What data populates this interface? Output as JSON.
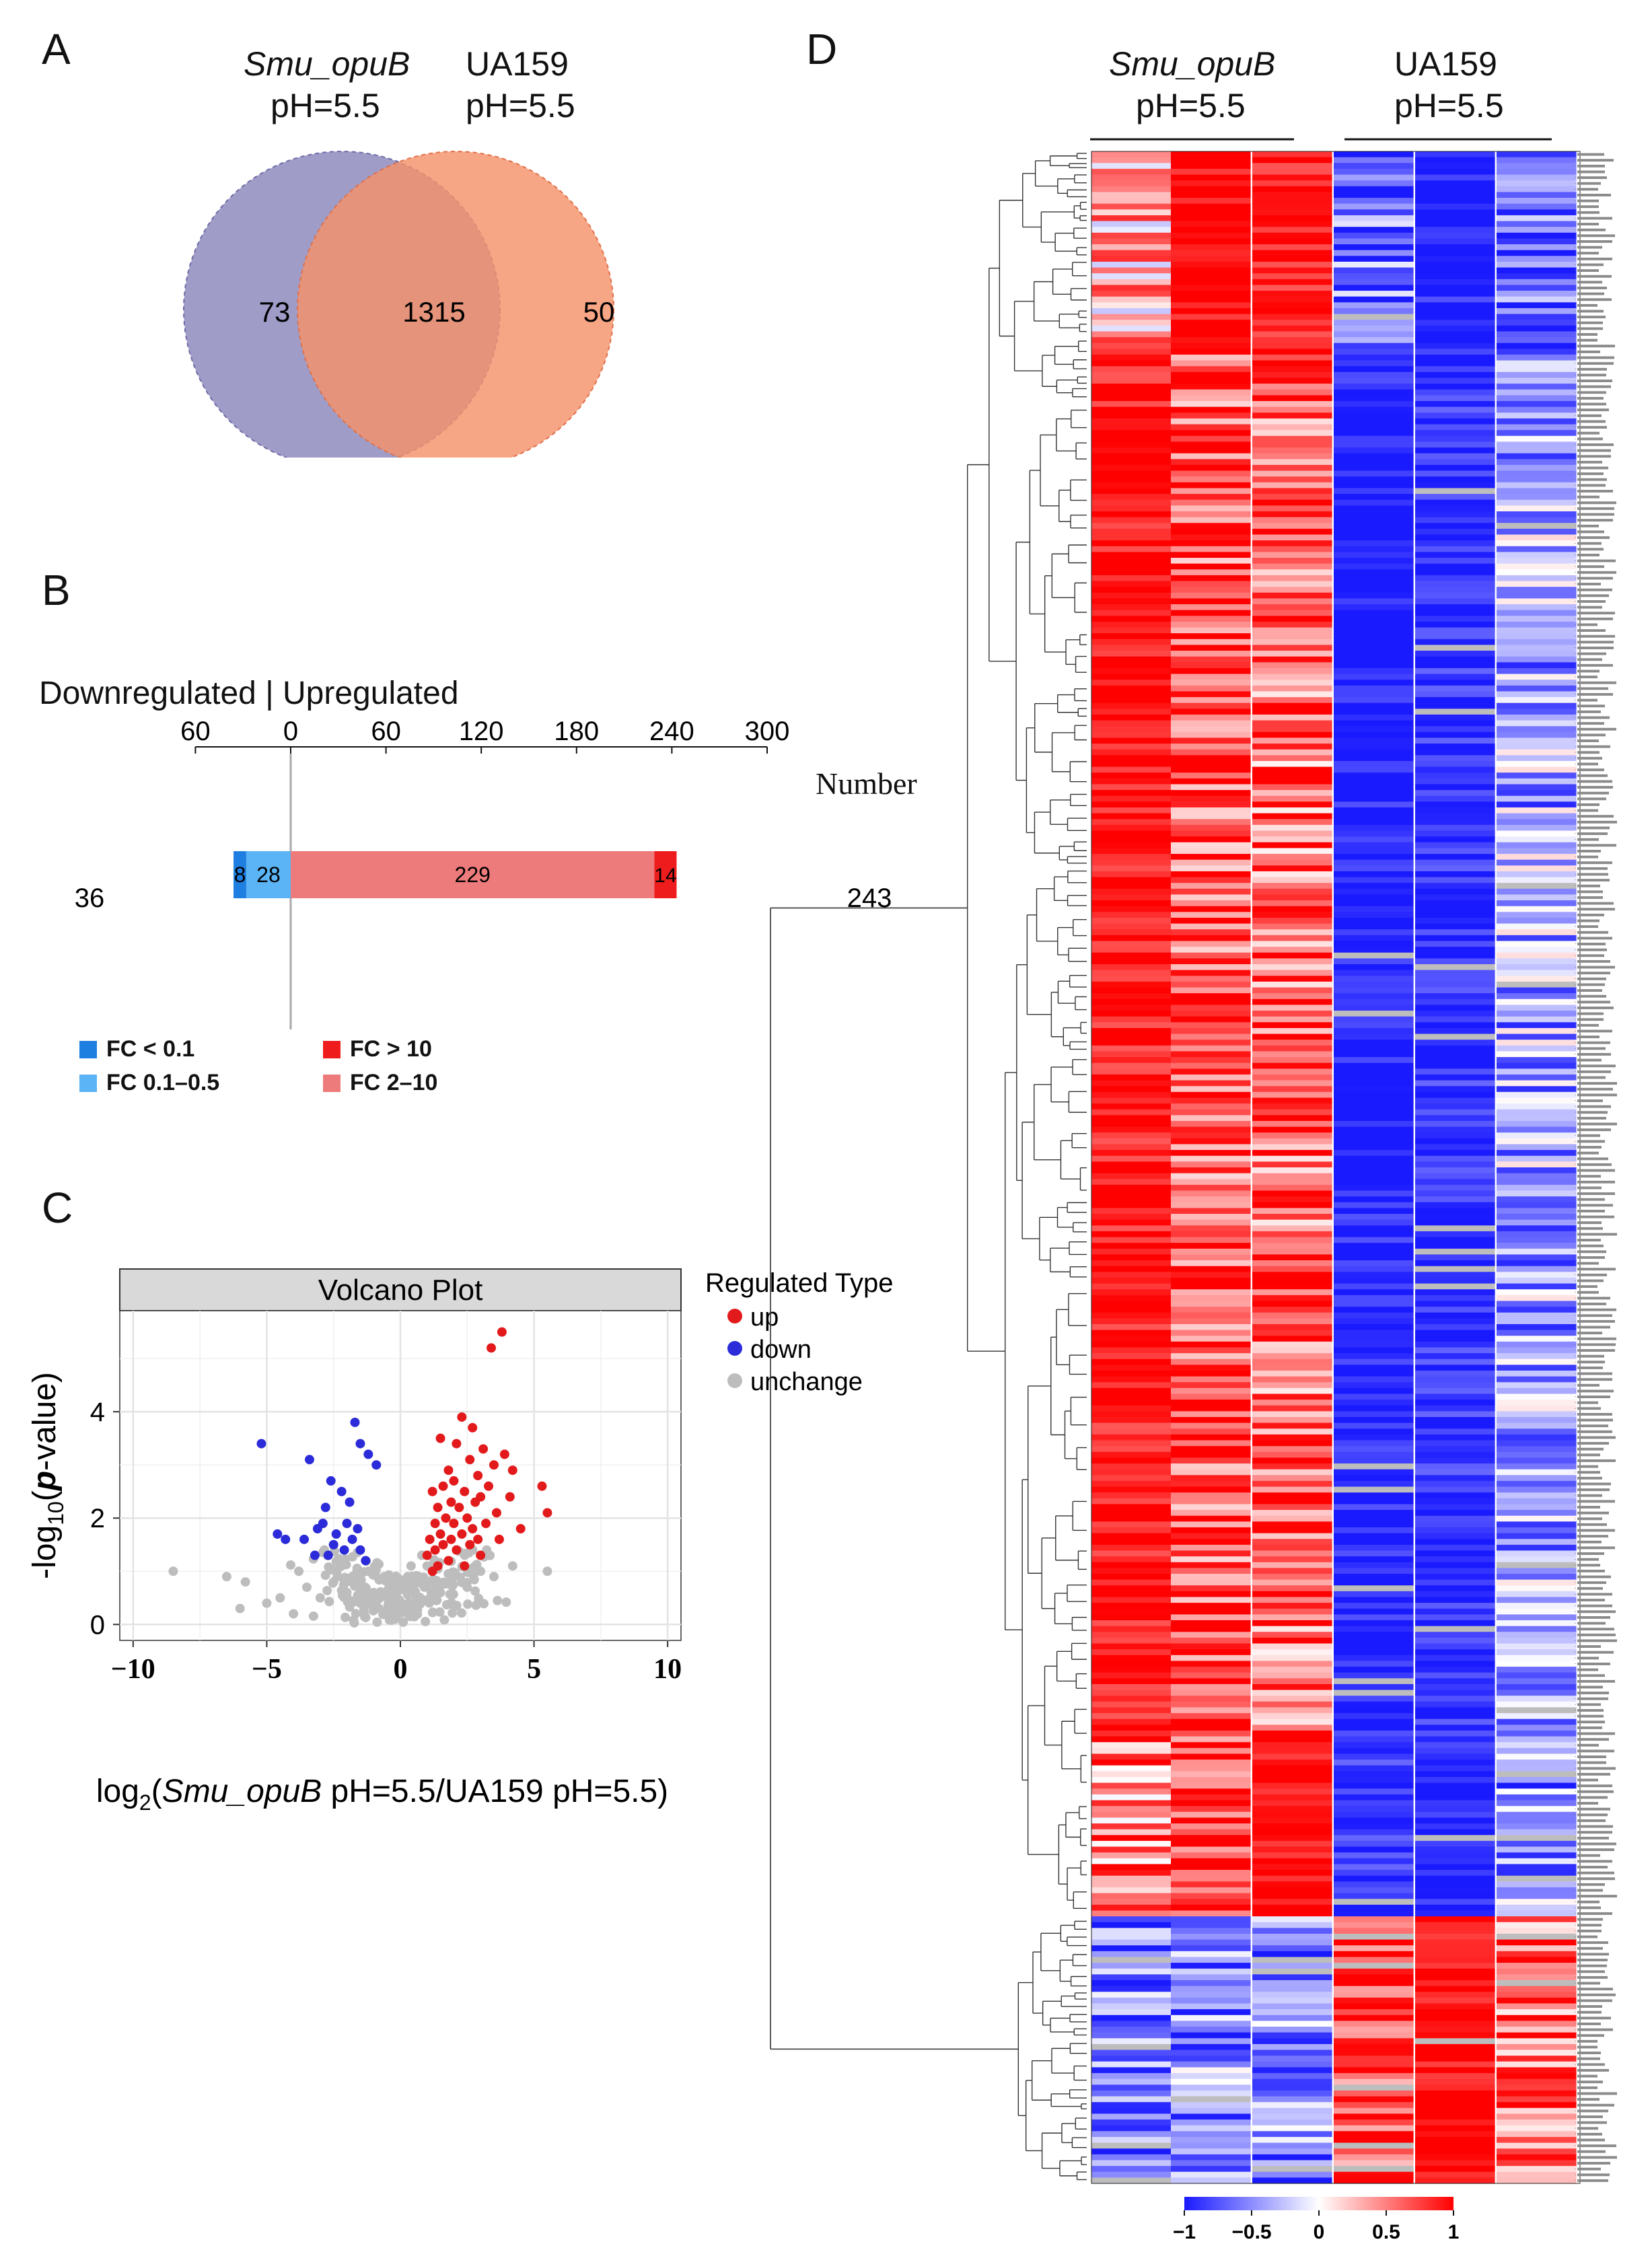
{
  "panels": {
    "a": "A",
    "b": "B",
    "c": "C",
    "d": "D"
  },
  "venn": {
    "left_label_line1": "Smu_opuB",
    "left_label_line2": "pH=5.5",
    "right_label_line1": "UA159",
    "right_label_line2": "pH=5.5",
    "left_only": "73",
    "overlap": "1315",
    "right_only": "50",
    "colors": {
      "left": "#8e8bbd",
      "right": "#f4916a",
      "overlap": "#c46a5f"
    }
  },
  "bar": {
    "header": "Downregulated | Upregulated",
    "axis_title": "Number",
    "down_total": "36",
    "up_total": "243",
    "legend": [
      {
        "label": "FC < 0.1",
        "color": "#1f7fe0"
      },
      {
        "label": "FC > 10",
        "color": "#ee1c1c"
      },
      {
        "label": "FC 0.1–0.5",
        "color": "#5ab4f5"
      },
      {
        "label": "FC 2–10",
        "color": "#ee7b7b"
      }
    ]
  },
  "volcano": {
    "title": "Volcano Plot",
    "legend_title": "Regulated Type",
    "legend_items": [
      {
        "label": "up",
        "color": "#e31a1c"
      },
      {
        "label": "down",
        "color": "#2b2bd9"
      },
      {
        "label": "unchange",
        "color": "#bdbdbd"
      }
    ]
  },
  "heatmap": {
    "group1_line1": "Smu_opuB",
    "group1_line2": "pH=5.5",
    "group2_line1": "UA159",
    "group2_line2": "pH=5.5",
    "colorbar_ticks": [
      "−1",
      "−0.5",
      "0",
      "0.5",
      "1"
    ],
    "colors": {
      "low": "#1a1aff",
      "mid": "#ffffff",
      "high": "#ff0000",
      "missing": "#bdbdbd"
    }
  },
  "chart_data": [
    {
      "type": "bar",
      "title": "Downregulated | Upregulated",
      "xlabel": "Number",
      "xlim": [
        -60,
        300
      ],
      "tick_labels": [
        "60",
        "0",
        "60",
        "120",
        "180",
        "240",
        "300"
      ],
      "tick_values": [
        -60,
        0,
        60,
        120,
        180,
        240,
        300
      ],
      "series": [
        {
          "name": "FC < 0.1",
          "value": -8
        },
        {
          "name": "FC 0.1–0.5",
          "value": -28
        },
        {
          "name": "FC 2–10",
          "value": 229
        },
        {
          "name": "FC > 10",
          "value": 14
        }
      ]
    },
    {
      "type": "scatter",
      "title": "Volcano Plot",
      "xlabel": "log2(Smu_opuB pH=5.5/UA159 pH=5.5)",
      "ylabel": "-log10(p-value)",
      "xlim": [
        -10.5,
        10.5
      ],
      "ylim": [
        -0.3,
        5.9
      ],
      "x_ticks": [
        "−10",
        "−5",
        "0",
        "5",
        "10"
      ],
      "x_tick_values": [
        -10,
        -5,
        0,
        5,
        10
      ],
      "y_ticks": [
        "0",
        "2",
        "4"
      ],
      "y_tick_values": [
        0,
        2,
        4
      ],
      "series": [
        {
          "name": "up",
          "points": [
            [
              3.8,
              5.5
            ],
            [
              3.4,
              5.2
            ],
            [
              2.3,
              3.9
            ],
            [
              2.7,
              3.7
            ],
            [
              2.1,
              3.4
            ],
            [
              3.1,
              3.3
            ],
            [
              3.9,
              3.2
            ],
            [
              1.5,
              3.5
            ],
            [
              2.6,
              3.1
            ],
            [
              3.5,
              3.0
            ],
            [
              4.2,
              2.9
            ],
            [
              1.8,
              2.9
            ],
            [
              2.0,
              2.7
            ],
            [
              2.9,
              2.8
            ],
            [
              3.3,
              2.6
            ],
            [
              1.6,
              2.6
            ],
            [
              5.3,
              2.6
            ],
            [
              2.4,
              2.5
            ],
            [
              1.2,
              2.5
            ],
            [
              3.0,
              2.4
            ],
            [
              4.1,
              2.4
            ],
            [
              1.9,
              2.3
            ],
            [
              2.2,
              2.2
            ],
            [
              2.8,
              2.3
            ],
            [
              1.4,
              2.2
            ],
            [
              3.6,
              2.1
            ],
            [
              1.7,
              2.0
            ],
            [
              2.5,
              2.0
            ],
            [
              5.5,
              2.1
            ],
            [
              2.0,
              1.9
            ],
            [
              3.2,
              1.9
            ],
            [
              1.3,
              1.9
            ],
            [
              2.7,
              1.8
            ],
            [
              1.5,
              1.7
            ],
            [
              2.3,
              1.7
            ],
            [
              1.9,
              1.6
            ],
            [
              1.1,
              1.6
            ],
            [
              2.6,
              1.5
            ],
            [
              1.6,
              1.5
            ],
            [
              2.1,
              1.4
            ],
            [
              1.3,
              1.4
            ],
            [
              3.0,
              1.3
            ],
            [
              1.8,
              1.2
            ],
            [
              1.4,
              1.1
            ],
            [
              2.4,
              1.1
            ],
            [
              1.2,
              1.0
            ],
            [
              4.5,
              1.8
            ],
            [
              3.7,
              1.6
            ],
            [
              1.0,
              1.3
            ],
            [
              2.9,
              1.6
            ]
          ]
        },
        {
          "name": "down",
          "points": [
            [
              -1.7,
              3.8
            ],
            [
              -1.5,
              3.4
            ],
            [
              -5.2,
              3.4
            ],
            [
              -1.2,
              3.2
            ],
            [
              -3.4,
              3.1
            ],
            [
              -0.9,
              3.0
            ],
            [
              -2.6,
              2.7
            ],
            [
              -2.2,
              2.5
            ],
            [
              -1.9,
              2.3
            ],
            [
              -2.8,
              2.2
            ],
            [
              -2.0,
              1.9
            ],
            [
              -3.1,
              1.8
            ],
            [
              -2.4,
              1.7
            ],
            [
              -1.8,
              1.6
            ],
            [
              -3.6,
              1.6
            ],
            [
              -4.3,
              1.6
            ],
            [
              -4.6,
              1.7
            ],
            [
              -1.5,
              1.4
            ],
            [
              -2.1,
              1.4
            ],
            [
              -2.7,
              1.3
            ],
            [
              -3.2,
              1.3
            ],
            [
              -1.3,
              1.2
            ],
            [
              -2.5,
              1.5
            ],
            [
              -2.9,
              1.9
            ],
            [
              -1.6,
              1.8
            ]
          ]
        },
        {
          "name": "unchange",
          "points": [
            [
              -8.5,
              1.0
            ],
            [
              -6.5,
              0.9
            ],
            [
              -5.8,
              0.8
            ],
            [
              -4.5,
              0.5
            ],
            [
              -3.5,
              0.7
            ],
            [
              -3.0,
              0.5
            ],
            [
              -2.5,
              0.8
            ],
            [
              -2.0,
              0.6
            ],
            [
              -1.5,
              0.4
            ],
            [
              -1.0,
              0.6
            ],
            [
              -0.8,
              0.3
            ],
            [
              -0.5,
              0.2
            ],
            [
              -0.2,
              0.1
            ],
            [
              0.0,
              0.3
            ],
            [
              0.3,
              0.2
            ],
            [
              0.6,
              0.5
            ],
            [
              0.9,
              0.7
            ],
            [
              1.2,
              0.8
            ],
            [
              1.5,
              0.6
            ],
            [
              2.0,
              0.9
            ],
            [
              2.5,
              0.7
            ],
            [
              3.0,
              1.0
            ],
            [
              3.5,
              0.9
            ],
            [
              4.2,
              1.1
            ],
            [
              5.5,
              1.0
            ],
            [
              -1.2,
              1.0
            ],
            [
              -0.6,
              0.9
            ],
            [
              0.4,
              1.1
            ],
            [
              0.8,
              1.3
            ],
            [
              -1.8,
              0.9
            ],
            [
              -0.3,
              0.6
            ],
            [
              0.2,
              0.8
            ],
            [
              1.0,
              1.1
            ],
            [
              -2.2,
              1.1
            ],
            [
              -3.8,
              1.0
            ],
            [
              -4.0,
              0.2
            ],
            [
              -5.0,
              0.4
            ],
            [
              -6.0,
              0.3
            ]
          ]
        }
      ]
    },
    {
      "type": "heatmap",
      "title": "",
      "columns": [
        "Smu_opuB pH=5.5 rep1",
        "Smu_opuB pH=5.5 rep2",
        "Smu_opuB pH=5.5 rep3",
        "UA159 pH=5.5 rep1",
        "UA159 pH=5.5 rep2",
        "UA159 pH=5.5 rep3"
      ],
      "value_range": [
        -1,
        1
      ],
      "colorbar_ticks": [
        -1,
        -0.5,
        0,
        0.5,
        1
      ],
      "row_blocks": [
        {
          "rows": 34,
          "values": [
            0.3,
            1.0,
            0.9,
            -0.6,
            -1.0,
            -0.7
          ]
        },
        {
          "rows": 240,
          "values": [
            0.9,
            0.7,
            0.6,
            -1.0,
            -0.9,
            -0.4
          ]
        },
        {
          "rows": 30,
          "values": [
            0.5,
            0.8,
            1.0,
            -0.9,
            -1.0,
            -0.5
          ]
        },
        {
          "rows": 46,
          "values": [
            -0.6,
            -0.5,
            -0.5,
            0.8,
            1.0,
            0.6
          ]
        }
      ]
    }
  ]
}
